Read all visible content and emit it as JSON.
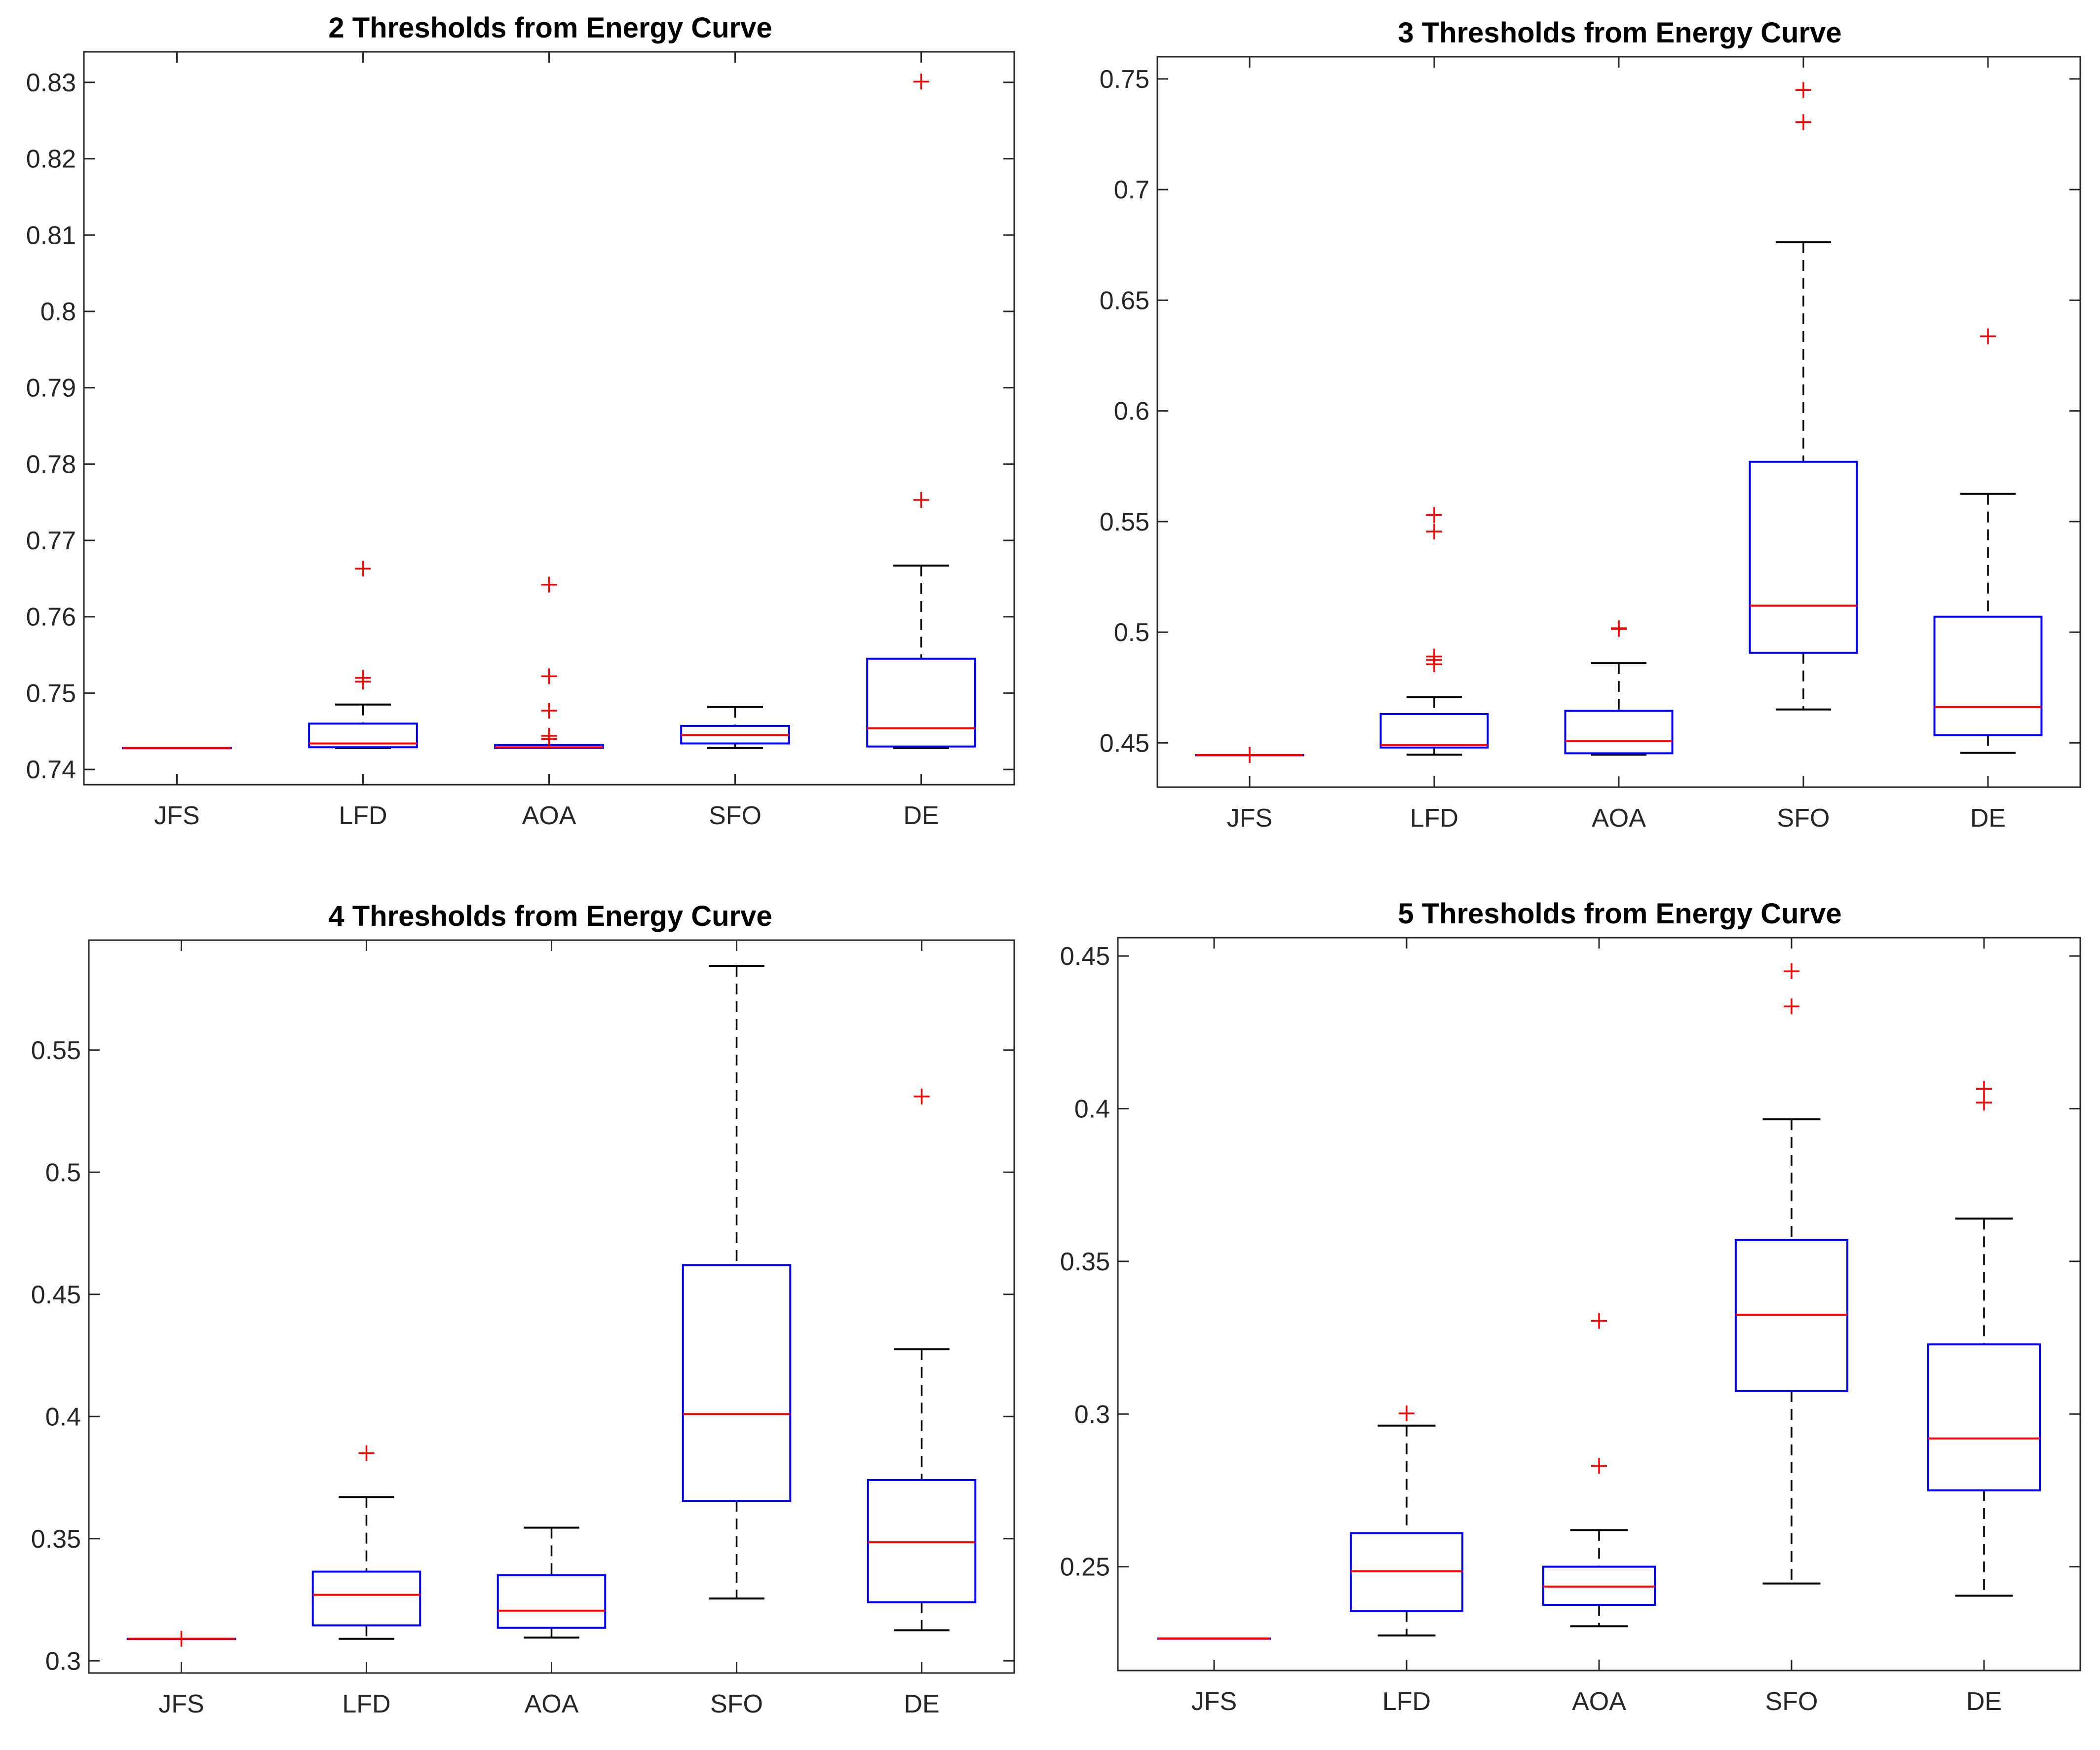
{
  "colors": {
    "box": "#0000ff",
    "median": "#ff0000",
    "outlier": "#ff0000",
    "whisker": "#000000",
    "axis": "#262626"
  },
  "chart_data": [
    {
      "type": "boxplot",
      "title": "2 Thresholds from Energy Curve",
      "categories": [
        "JFS",
        "LFD",
        "AOA",
        "SFO",
        "DE"
      ],
      "ylim": [
        0.738,
        0.834
      ],
      "yticks": [
        0.74,
        0.75,
        0.76,
        0.77,
        0.78,
        0.79,
        0.8,
        0.81,
        0.82,
        0.83
      ],
      "ytick_labels": [
        "0.74",
        "0.75",
        "0.76",
        "0.77",
        "0.78",
        "0.79",
        "0.8",
        "0.81",
        "0.82",
        "0.83"
      ],
      "boxes": [
        {
          "name": "JFS",
          "min": 0.7428,
          "q1": 0.7428,
          "median": 0.7428,
          "q3": 0.7428,
          "max": 0.7428,
          "outliers": []
        },
        {
          "name": "LFD",
          "min": 0.7428,
          "q1": 0.7429,
          "median": 0.7434,
          "q3": 0.746,
          "max": 0.7485,
          "outliers": [
            0.7515,
            0.752,
            0.7663
          ]
        },
        {
          "name": "AOA",
          "min": 0.7428,
          "q1": 0.7428,
          "median": 0.7429,
          "q3": 0.7432,
          "max": 0.7432,
          "outliers": [
            0.744,
            0.7444,
            0.7477,
            0.7522,
            0.7642
          ]
        },
        {
          "name": "SFO",
          "min": 0.7428,
          "q1": 0.7434,
          "median": 0.7445,
          "q3": 0.7457,
          "max": 0.7482,
          "outliers": []
        },
        {
          "name": "DE",
          "min": 0.7428,
          "q1": 0.743,
          "median": 0.7454,
          "q3": 0.7545,
          "max": 0.7667,
          "outliers": [
            0.7753,
            0.8301
          ]
        }
      ]
    },
    {
      "type": "boxplot",
      "title": "3 Thresholds from Energy Curve",
      "categories": [
        "JFS",
        "LFD",
        "AOA",
        "SFO",
        "DE"
      ],
      "ylim": [
        0.43,
        0.76
      ],
      "yticks": [
        0.45,
        0.5,
        0.55,
        0.6,
        0.65,
        0.7,
        0.75
      ],
      "ytick_labels": [
        "0.45",
        "0.5",
        "0.55",
        "0.6",
        "0.65",
        "0.7",
        "0.75"
      ],
      "boxes": [
        {
          "name": "JFS",
          "min": 0.4445,
          "q1": 0.4445,
          "median": 0.4445,
          "q3": 0.4445,
          "max": 0.4445,
          "outliers": [
            0.4445
          ]
        },
        {
          "name": "LFD",
          "min": 0.4447,
          "q1": 0.4479,
          "median": 0.449,
          "q3": 0.463,
          "max": 0.4707,
          "outliers": [
            0.4855,
            0.4875,
            0.489,
            0.5455,
            0.553
          ]
        },
        {
          "name": "AOA",
          "min": 0.4447,
          "q1": 0.4453,
          "median": 0.4508,
          "q3": 0.4645,
          "max": 0.486,
          "outliers": [
            0.5015,
            0.5018
          ]
        },
        {
          "name": "SFO",
          "min": 0.4651,
          "q1": 0.4907,
          "median": 0.512,
          "q3": 0.577,
          "max": 0.6762,
          "outliers": [
            0.7305,
            0.745
          ]
        },
        {
          "name": "DE",
          "min": 0.4455,
          "q1": 0.4535,
          "median": 0.4662,
          "q3": 0.507,
          "max": 0.5625,
          "outliers": [
            0.6337
          ]
        }
      ]
    },
    {
      "type": "boxplot",
      "title": "4 Thresholds from Energy Curve",
      "categories": [
        "JFS",
        "LFD",
        "AOA",
        "SFO",
        "DE"
      ],
      "ylim": [
        0.295,
        0.595
      ],
      "yticks": [
        0.3,
        0.35,
        0.4,
        0.45,
        0.5,
        0.55
      ],
      "ytick_labels": [
        "0.3",
        "0.35",
        "0.4",
        "0.45",
        "0.5",
        "0.55"
      ],
      "boxes": [
        {
          "name": "JFS",
          "min": 0.309,
          "q1": 0.309,
          "median": 0.309,
          "q3": 0.309,
          "max": 0.309,
          "outliers": [
            0.309
          ]
        },
        {
          "name": "LFD",
          "min": 0.309,
          "q1": 0.3145,
          "median": 0.327,
          "q3": 0.3365,
          "max": 0.367,
          "outliers": [
            0.385
          ]
        },
        {
          "name": "AOA",
          "min": 0.3095,
          "q1": 0.3135,
          "median": 0.3205,
          "q3": 0.335,
          "max": 0.3545,
          "outliers": []
        },
        {
          "name": "SFO",
          "min": 0.3255,
          "q1": 0.3655,
          "median": 0.401,
          "q3": 0.462,
          "max": 0.5845,
          "outliers": []
        },
        {
          "name": "DE",
          "min": 0.3125,
          "q1": 0.324,
          "median": 0.3485,
          "q3": 0.374,
          "max": 0.4275,
          "outliers": [
            0.531
          ]
        }
      ]
    },
    {
      "type": "boxplot",
      "title": "5 Thresholds from Energy Curve",
      "categories": [
        "JFS",
        "LFD",
        "AOA",
        "SFO",
        "DE"
      ],
      "ylim": [
        0.216,
        0.456
      ],
      "yticks": [
        0.25,
        0.3,
        0.35,
        0.4,
        0.45
      ],
      "ytick_labels": [
        "0.25",
        "0.3",
        "0.35",
        "0.4",
        "0.45"
      ],
      "boxes": [
        {
          "name": "JFS",
          "min": 0.2265,
          "q1": 0.2265,
          "median": 0.2265,
          "q3": 0.2265,
          "max": 0.2265,
          "outliers": []
        },
        {
          "name": "LFD",
          "min": 0.2275,
          "q1": 0.2355,
          "median": 0.2485,
          "q3": 0.261,
          "max": 0.2962,
          "outliers": [
            0.3002
          ]
        },
        {
          "name": "AOA",
          "min": 0.2305,
          "q1": 0.2375,
          "median": 0.2435,
          "q3": 0.25,
          "max": 0.262,
          "outliers": [
            0.283,
            0.3305
          ]
        },
        {
          "name": "SFO",
          "min": 0.2445,
          "q1": 0.3075,
          "median": 0.3325,
          "q3": 0.357,
          "max": 0.3965,
          "outliers": [
            0.4335,
            0.445
          ]
        },
        {
          "name": "DE",
          "min": 0.2405,
          "q1": 0.275,
          "median": 0.292,
          "q3": 0.3228,
          "max": 0.364,
          "outliers": [
            0.402,
            0.4065
          ]
        }
      ]
    }
  ]
}
